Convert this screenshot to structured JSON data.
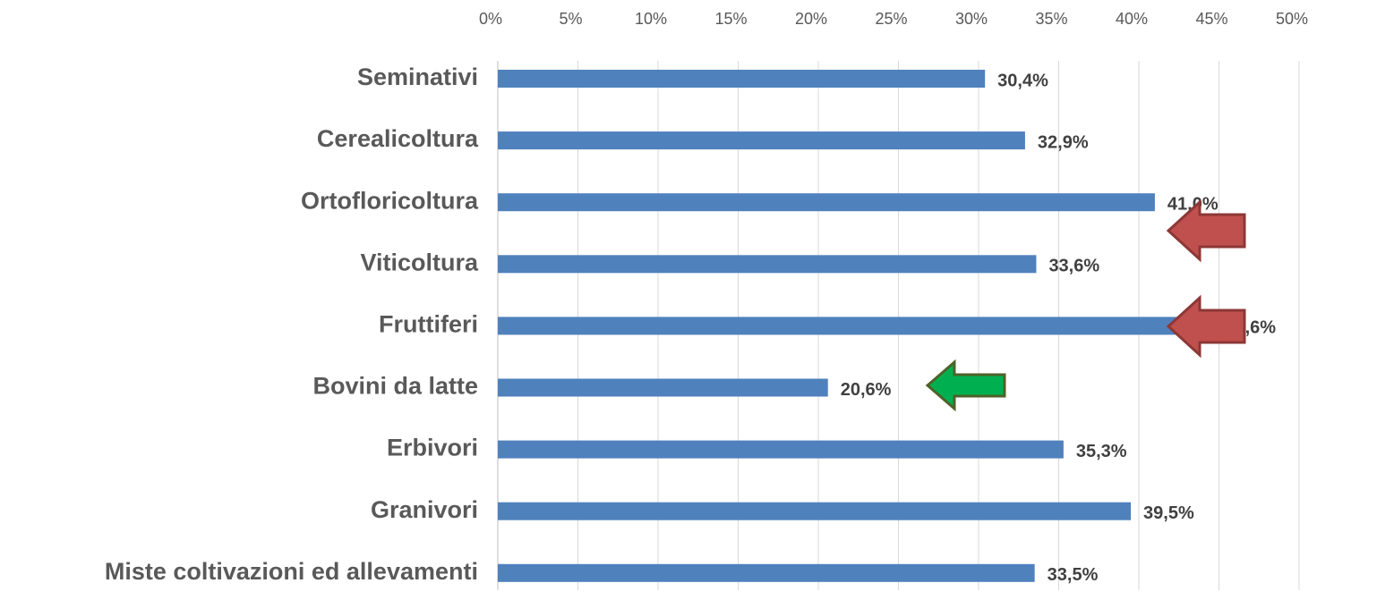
{
  "chart_data": {
    "type": "bar",
    "orientation": "horizontal",
    "categories": [
      "Seminativi",
      "Cerealicoltura",
      "Ortofloricoltura",
      "Viticoltura",
      "Fruttiferi",
      "Bovini da latte",
      "Erbivori",
      "Granivori",
      "Miste coltivazioni ed allevamenti"
    ],
    "values": [
      30.4,
      32.9,
      41.0,
      33.6,
      44.6,
      20.6,
      35.3,
      39.5,
      33.5
    ],
    "value_labels": [
      "30,4%",
      "32,9%",
      "41,0%",
      "33,6%",
      "44,6%",
      "20,6%",
      "35,3%",
      "39,5%",
      "33,5%"
    ],
    "color": "#4f81bd",
    "xlim": [
      0,
      50
    ],
    "xticks": [
      {
        "value": 0,
        "label": "0%"
      },
      {
        "value": 5,
        "label": "5%"
      },
      {
        "value": 10,
        "label": "10%"
      },
      {
        "value": 15,
        "label": "15%"
      },
      {
        "value": 20,
        "label": "20%"
      },
      {
        "value": 25,
        "label": "25%"
      },
      {
        "value": 30,
        "label": "30%"
      },
      {
        "value": 35,
        "label": "35%"
      },
      {
        "value": 40,
        "label": "40%"
      },
      {
        "value": 45,
        "label": "45%"
      },
      {
        "value": 50,
        "label": "50%"
      }
    ],
    "grid": true
  }
}
